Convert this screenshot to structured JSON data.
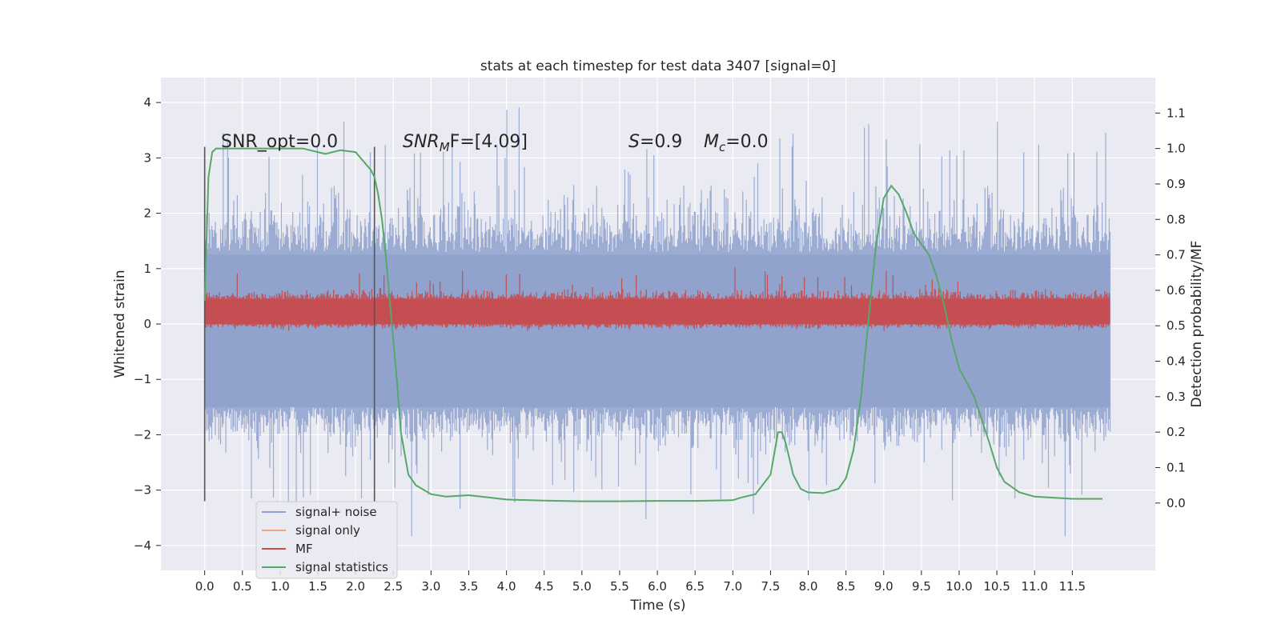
{
  "chart_data": {
    "type": "line",
    "title": "stats at each timestep for test data 3407 [signal=0]",
    "xlabel": "Time (s)",
    "ylabel": "Whitened strain",
    "y2label": "Detection probability/MF",
    "xlim": [
      -0.58,
      12.6
    ],
    "ylim": [
      -4.45,
      4.45
    ],
    "y2lim": [
      -0.19,
      1.2
    ],
    "xticks": [
      0.0,
      0.5,
      1.0,
      1.5,
      2.0,
      2.5,
      3.0,
      3.5,
      4.0,
      4.5,
      5.0,
      5.5,
      6.0,
      6.5,
      7.0,
      7.5,
      8.0,
      8.5,
      9.0,
      9.5,
      10.0,
      10.5,
      11.0,
      11.5
    ],
    "xtick_labels": [
      "0.0",
      "0.5",
      "1.0",
      "1.5",
      "2.0",
      "2.5",
      "3.0",
      "3.5",
      "4.0",
      "4.5",
      "5.0",
      "5.5",
      "6.0",
      "6.5",
      "7.0",
      "7.5",
      "8.0",
      "8.5",
      "9.0",
      "9.5",
      "10.0",
      "10.5",
      "11.0",
      "11.5"
    ],
    "yticks": [
      4,
      3,
      2,
      1,
      0,
      -1,
      -2,
      -3,
      -4
    ],
    "ytick_labels": [
      "4",
      "3",
      "2",
      "1",
      "0",
      "−1",
      "−2",
      "−3",
      "−4"
    ],
    "y2ticks": [
      1.1,
      1.0,
      0.9,
      0.8,
      0.7,
      0.6,
      0.5,
      0.4,
      0.3,
      0.2,
      0.1,
      0.0
    ],
    "y2tick_labels": [
      "1.1",
      "1.0",
      "0.9",
      "0.8",
      "0.7",
      "0.6",
      "0.5",
      "0.4",
      "0.3",
      "0.2",
      "0.1",
      "0.0"
    ],
    "colors": {
      "noise": "#8da0cb",
      "signal_only": "#e8a888",
      "mf": "#c44e52",
      "stat": "#55a868",
      "vline": "#555555",
      "plot_bg": "#eaeaf2",
      "grid": "#ffffff"
    },
    "annotations": {
      "snr_opt": "SNR_opt=0.0",
      "snr_mf_prefix": "SNR",
      "snr_mf_sub": "M",
      "snr_mf_suffix": "F=[4.09]",
      "s_label": "S",
      "s_value": "=0.9",
      "mc_label": "M",
      "mc_sub": "c",
      "mc_value": "=0.0"
    },
    "vlines_x": [
      0.0,
      2.25
    ],
    "vlines_range": [
      -3.2,
      3.2
    ],
    "noise_range": [
      0.0,
      12.0
    ],
    "mf_range": [
      0.0,
      12.0
    ],
    "series": [
      {
        "name": "signal+ noise",
        "axis": "left",
        "description": "dense whitened strain, roughly within -2 to 2, spikes up to 4.1 and down to -4.1"
      },
      {
        "name": "signal only",
        "axis": "left",
        "values": []
      },
      {
        "name": "MF",
        "axis": "right",
        "description": "matched filter output, roughly between 0.5 and 0.6, peaks near 0.66"
      },
      {
        "name": "signal statistics",
        "axis": "right",
        "x": [
          0.0,
          0.05,
          0.1,
          0.15,
          0.25,
          0.5,
          1.0,
          1.3,
          1.5,
          1.6,
          1.8,
          2.0,
          2.2,
          2.25,
          2.3,
          2.35,
          2.4,
          2.45,
          2.5,
          2.55,
          2.6,
          2.7,
          2.8,
          3.0,
          3.2,
          3.5,
          4.0,
          4.5,
          5.0,
          5.5,
          6.0,
          6.5,
          7.0,
          7.1,
          7.3,
          7.5,
          7.6,
          7.65,
          7.7,
          7.8,
          7.9,
          8.0,
          8.2,
          8.4,
          8.5,
          8.6,
          8.7,
          8.8,
          8.9,
          9.0,
          9.1,
          9.2,
          9.3,
          9.4,
          9.5,
          9.6,
          9.7,
          9.8,
          9.9,
          10.0,
          10.2,
          10.4,
          10.5,
          10.6,
          10.8,
          11.0,
          11.5,
          11.9
        ],
        "values": [
          0.57,
          0.92,
          0.99,
          1.0,
          1.0,
          1.0,
          1.0,
          1.0,
          0.99,
          0.985,
          0.995,
          0.99,
          0.94,
          0.92,
          0.87,
          0.8,
          0.7,
          0.58,
          0.46,
          0.34,
          0.2,
          0.08,
          0.05,
          0.025,
          0.018,
          0.022,
          0.01,
          0.007,
          0.005,
          0.005,
          0.006,
          0.006,
          0.008,
          0.015,
          0.025,
          0.08,
          0.2,
          0.2,
          0.17,
          0.08,
          0.04,
          0.03,
          0.028,
          0.04,
          0.07,
          0.15,
          0.3,
          0.52,
          0.73,
          0.86,
          0.895,
          0.87,
          0.82,
          0.76,
          0.73,
          0.7,
          0.64,
          0.56,
          0.46,
          0.38,
          0.3,
          0.17,
          0.1,
          0.06,
          0.03,
          0.018,
          0.012,
          0.012
        ]
      }
    ],
    "legend": [
      "signal+ noise",
      "signal only",
      "MF",
      "signal statistics"
    ],
    "legend_position": "lower-left",
    "grid": true
  }
}
